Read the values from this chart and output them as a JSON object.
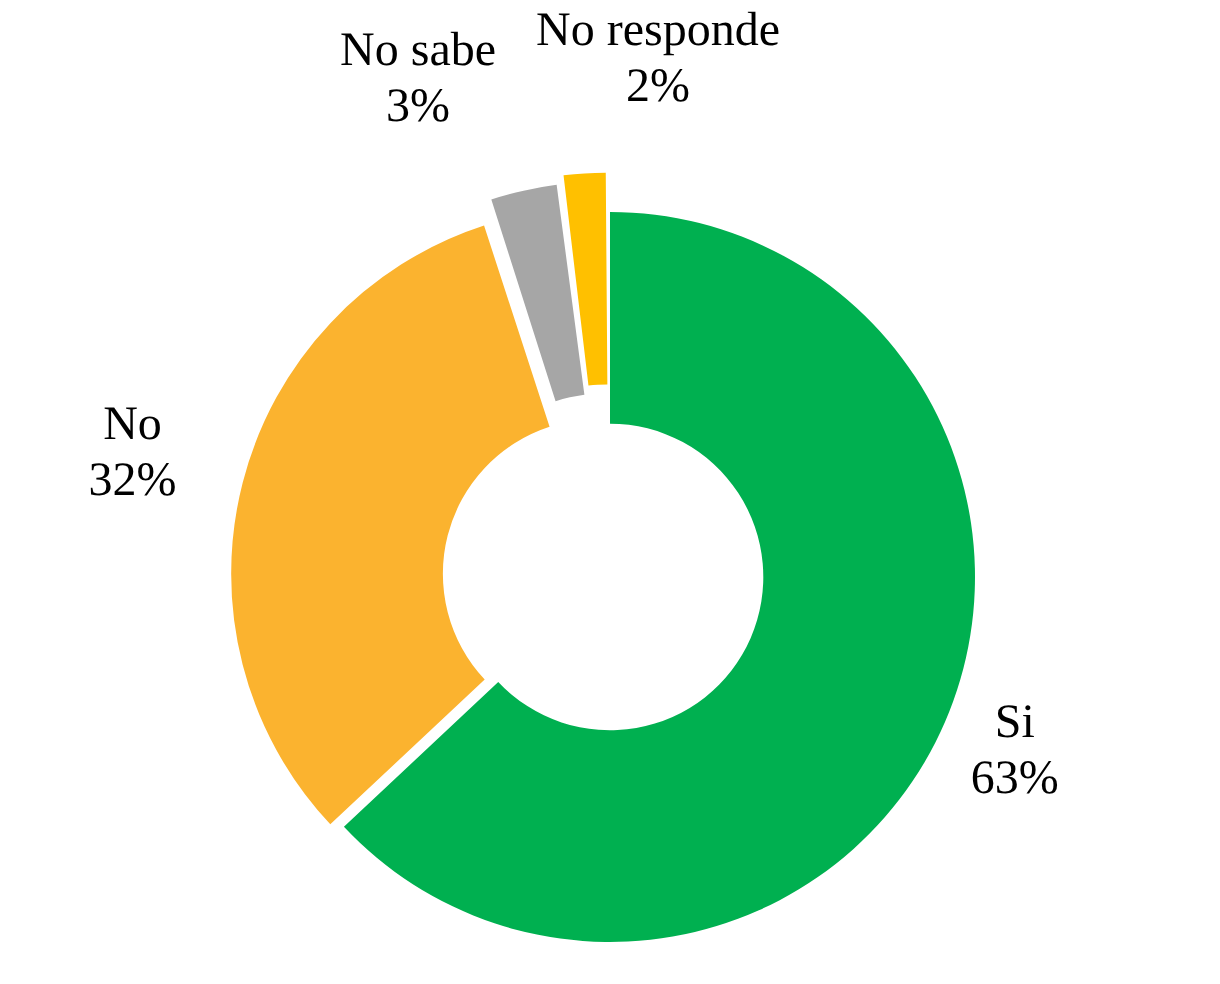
{
  "chart_data": {
    "type": "donut",
    "categories": [
      "Si",
      "No",
      "No sabe",
      "No responde"
    ],
    "values": [
      63,
      32,
      3,
      2
    ],
    "colors": [
      "#00b050",
      "#fbb32f",
      "#a6a6a6",
      "#ffc000"
    ],
    "value_labels": [
      "63%",
      "32%",
      "3%",
      "2%"
    ],
    "legend": false
  }
}
